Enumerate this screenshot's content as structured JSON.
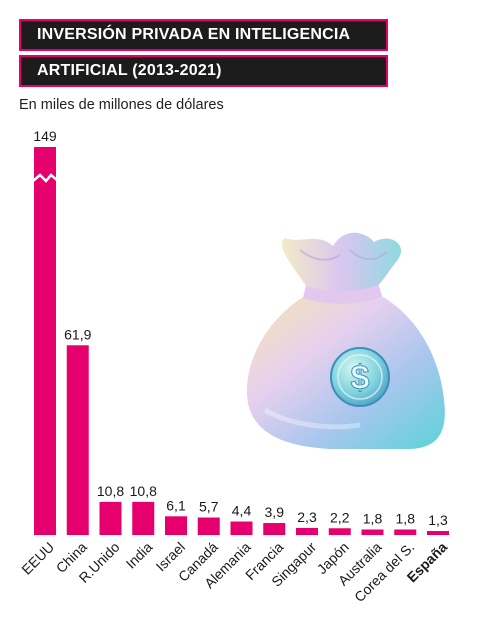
{
  "header": {
    "title_line1": "INVERSIÓN PRIVADA EN INTELIGENCIA",
    "title_line2": "ARTIFICIAL (2013-2021)",
    "subtitle": "En miles de millones de dólares"
  },
  "colors": {
    "bar": "#e5006d",
    "title_bg": "#1c1c1c",
    "title_border": "#e5006d"
  },
  "illustration": {
    "name": "money-bag-icon"
  },
  "chart_data": {
    "type": "bar",
    "title": "INVERSIÓN PRIVADA EN INTELIGENCIA ARTIFICIAL (2013-2021)",
    "ylabel": "En miles de millones de dólares",
    "categories": [
      "EEUU",
      "China",
      "R.Unido",
      "India",
      "Israel",
      "Canadá",
      "Alemania",
      "Francia",
      "Singapur",
      "Japón",
      "Australia",
      "Corea del S.",
      "España"
    ],
    "values": [
      149,
      61.9,
      10.8,
      10.8,
      6.1,
      5.7,
      4.4,
      3.9,
      2.3,
      2.2,
      1.8,
      1.8,
      1.3
    ],
    "value_labels": [
      "149",
      "61,9",
      "10,8",
      "10,8",
      "6,1",
      "5,7",
      "4,4",
      "3,9",
      "2,3",
      "2,2",
      "1,8",
      "1,8",
      "1,3"
    ],
    "highlight_category": "España",
    "axis_break_on": "EEUU",
    "grid": false,
    "legend": "none"
  }
}
